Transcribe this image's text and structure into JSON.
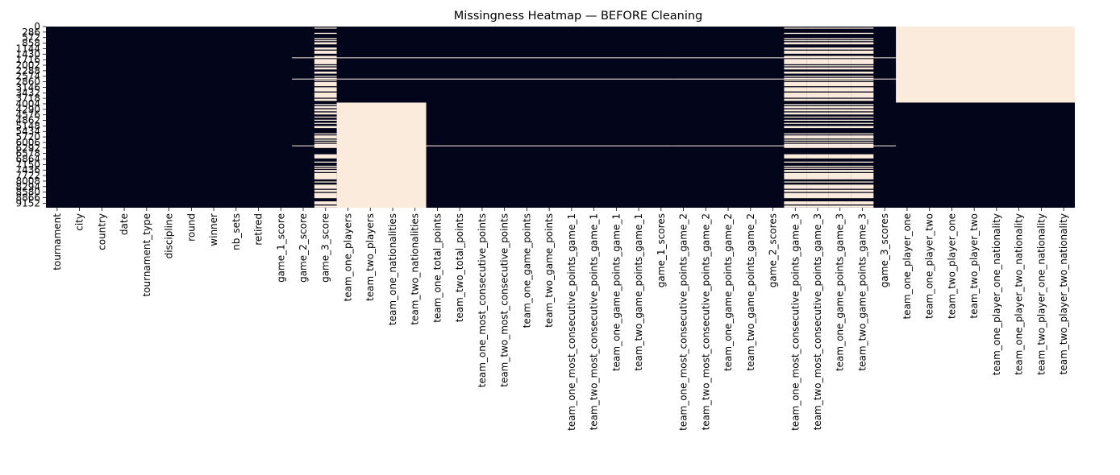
{
  "chart_data": {
    "type": "heatmap",
    "title": "Missingness Heatmap — BEFORE Cleaning",
    "colors": {
      "present": "#03051a",
      "missing": "#faebdd",
      "tick": "#000000"
    },
    "row_tick_labels": [
      "0",
      "286",
      "572",
      "858",
      "1144",
      "1430",
      "1716",
      "2002",
      "2288",
      "2574",
      "2860",
      "3146",
      "3432",
      "3718",
      "4004",
      "4290",
      "4576",
      "4862",
      "5148",
      "5434",
      "5720",
      "6006",
      "6292",
      "6578",
      "6864",
      "7150",
      "7436",
      "7722",
      "8008",
      "8294",
      "8580",
      "8866",
      "9152"
    ],
    "row_tick_values": [
      0,
      286,
      572,
      858,
      1144,
      1430,
      1716,
      2002,
      2288,
      2574,
      2860,
      3146,
      3432,
      3718,
      4004,
      4290,
      4576,
      4862,
      5148,
      5434,
      5720,
      6006,
      6292,
      6578,
      6864,
      7150,
      7436,
      7722,
      8008,
      8294,
      8580,
      8866,
      9152
    ],
    "n_rows": 9388,
    "columns": [
      "tournament",
      "city",
      "country",
      "date",
      "tournament_type",
      "discipline",
      "round",
      "winner",
      "nb_sets",
      "retired",
      "game_1_score",
      "game_2_score",
      "game_3_score",
      "team_one_players",
      "team_two_players",
      "team_one_nationalities",
      "team_two_nationalities",
      "team_one_total_points",
      "team_two_total_points",
      "team_one_most_consecutive_points",
      "team_two_most_consecutive_points",
      "team_one_game_points",
      "team_two_game_points",
      "team_one_most_consecutive_points_game_1",
      "team_two_most_consecutive_points_game_1",
      "team_one_game_points_game_1",
      "team_two_game_points_game_1",
      "game_1_scores",
      "team_one_most_consecutive_points_game_2",
      "team_two_most_consecutive_points_game_2",
      "team_one_game_points_game_2",
      "team_two_game_points_game_2",
      "game_2_scores",
      "team_one_most_consecutive_points_game_3",
      "team_two_most_consecutive_points_game_3",
      "team_one_game_points_game_3",
      "team_two_game_points_game_3",
      "game_3_scores",
      "team_one_player_one",
      "team_one_player_two",
      "team_two_player_one",
      "team_two_player_two",
      "team_one_player_one_nationality",
      "team_one_player_two_nationality",
      "team_two_player_one_nationality",
      "team_two_player_two_nationality"
    ],
    "missing_blocks": [
      {
        "columns": [
          13,
          14,
          15,
          16
        ],
        "row_start": 3940,
        "row_end": 9388
      },
      {
        "columns": [
          38,
          39,
          40,
          41,
          42,
          43,
          44,
          45
        ],
        "row_start": 0,
        "row_end": 3940
      }
    ],
    "missing_lines": [
      {
        "columns": [
          11,
          27
        ],
        "row": 1620
      },
      {
        "columns": [
          11,
          27
        ],
        "row": 2720
      },
      {
        "columns": [
          11,
          27
        ],
        "row": 6180
      },
      {
        "columns": [
          28,
          37
        ],
        "row": 1620
      },
      {
        "columns": [
          28,
          37
        ],
        "row": 2720
      },
      {
        "columns": [
          28,
          37
        ],
        "row": 6180
      },
      {
        "columns": [
          38,
          45
        ],
        "row": 1620
      },
      {
        "columns": [
          38,
          45
        ],
        "row": 2720
      }
    ],
    "striped_columns": [
      12,
      33,
      34,
      35,
      36
    ],
    "striped_missing_share": 0.55
  }
}
